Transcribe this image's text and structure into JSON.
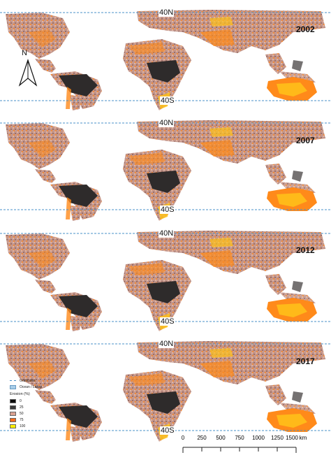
{
  "panels": [
    {
      "year": "2002",
      "lat_north": "40N",
      "lat_south": "40S"
    },
    {
      "year": "2007",
      "lat_north": "40N",
      "lat_south": "40S"
    },
    {
      "year": "2012",
      "lat_north": "40N",
      "lat_south": "40S"
    },
    {
      "year": "2017",
      "lat_north": "40N",
      "lat_south": "40S"
    }
  ],
  "north_arrow": {
    "label": "N"
  },
  "legend": {
    "graticules": "Graticules",
    "ocean": "Ocean / Lakes",
    "title": "Erosion (%)",
    "classes": [
      {
        "label": "0",
        "color": "#0a0a0a"
      },
      {
        "label": "25",
        "color": "#3a3a3a"
      },
      {
        "label": "50",
        "color": "#d9a090"
      },
      {
        "label": "75",
        "color": "#ff6a1a"
      },
      {
        "label": "100",
        "color": "#ffee00"
      }
    ]
  },
  "scale_bar": {
    "ticks": [
      "0",
      "250",
      "500",
      "750",
      "1000",
      "1250",
      "1500"
    ],
    "unit": "km"
  },
  "colors": {
    "graticule": "#4a90c8",
    "land_base": "#c89a8c",
    "forest_dark": "#2e2b2b",
    "erosion_orange": "#ff8a1a",
    "erosion_yellow": "#ffc21a"
  }
}
